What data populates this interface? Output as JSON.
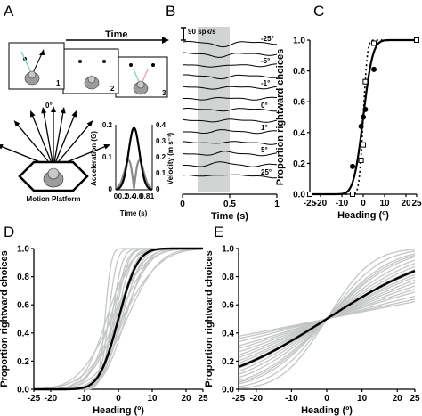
{
  "panel_a": {
    "label": "A",
    "time_label": "Time",
    "frame_numbers": [
      "1",
      "2",
      "3"
    ],
    "heading_zero": "0°",
    "platform_label": "Motion Platform",
    "inset": {
      "xlabel": "Time (s)",
      "ylabel_left": "Acceleration (G)",
      "ylabel_right": "Velocity (m s⁻¹)",
      "xticks": [
        "0",
        "0.2",
        "0.4",
        "0.6",
        "0.8",
        "1"
      ],
      "yticks_left": [
        "0",
        "0.1",
        "0.2"
      ],
      "yticks_right": [
        "0",
        "0.1",
        "0.2",
        "0.3",
        "0.4"
      ]
    }
  },
  "panel_b": {
    "label": "B",
    "scale_label": "90 spk/s",
    "headings": [
      "-25°",
      "-5°",
      "-1°",
      "0°",
      "1°",
      "5°",
      "25°"
    ],
    "xlabel": "Time (s)",
    "xticks": [
      "0",
      "0.5",
      "1"
    ]
  },
  "chart_data": [
    {
      "panel": "C",
      "type": "scatter",
      "xlabel": "Heading (º)",
      "ylabel": "Proportion rightward choices",
      "xlim": [
        -25,
        25
      ],
      "ylim": [
        0,
        1
      ],
      "xticks": [
        "-25",
        "-20",
        "-10",
        "0",
        "10",
        "20",
        "25"
      ],
      "yticks": [
        "0.0",
        "0.2",
        "0.4",
        "0.6",
        "0.8",
        "1.0"
      ],
      "series": [
        {
          "marker": "filled-circle",
          "x": [
            -25,
            -5,
            -1,
            0,
            1,
            5,
            25
          ],
          "y": [
            0.0,
            0.18,
            0.44,
            0.5,
            0.55,
            0.81,
            1.0
          ]
        },
        {
          "marker": "open-square",
          "x": [
            -25,
            -5,
            -1,
            0,
            1,
            5,
            25
          ],
          "y": [
            0.0,
            0.0,
            0.22,
            0.32,
            0.73,
            0.98,
            1.0
          ]
        }
      ],
      "fits": [
        {
          "style": "solid",
          "mu": 0,
          "sigma": 3.5
        },
        {
          "style": "dotted",
          "mu": 0,
          "sigma": 1.5
        }
      ]
    },
    {
      "panel": "D",
      "type": "line",
      "xlabel": "Heading (º)",
      "ylabel": "Proportion rightward choices",
      "xlim": [
        -25,
        25
      ],
      "ylim": [
        0,
        1
      ],
      "xticks": [
        "-25",
        "-20",
        "-10",
        "0",
        "10",
        "20",
        "25"
      ],
      "yticks": [
        "0.0",
        "0.2",
        "0.4",
        "0.6",
        "0.8",
        "1.0"
      ],
      "mean_fit": {
        "mu": 0,
        "sigma": 4.5
      },
      "individual_sigmas": [
        1.5,
        2,
        2.5,
        3,
        3,
        3.5,
        4,
        4,
        4.5,
        5,
        5,
        5.5,
        6,
        6.5,
        7,
        7.5,
        8,
        9
      ],
      "individual_mus": [
        -4,
        -3,
        -2,
        -1.5,
        -1,
        -0.5,
        0,
        0.5,
        1,
        -2.5,
        2,
        -3.5,
        1.5,
        -1,
        0,
        2.5,
        -2,
        1
      ]
    },
    {
      "panel": "E",
      "type": "line",
      "xlabel": "Heading (º)",
      "ylabel": "Proportion rightward choices",
      "xlim": [
        -25,
        25
      ],
      "ylim": [
        0,
        1
      ],
      "xticks": [
        "-25",
        "-20",
        "-10",
        "0",
        "10",
        "20",
        "25"
      ],
      "yticks": [
        "0.0",
        "0.2",
        "0.4",
        "0.6",
        "0.8",
        "1.0"
      ],
      "mean_fit": {
        "mu": 0,
        "sigma": 25
      },
      "individual_sigmas": [
        10,
        12,
        14,
        15,
        16,
        18,
        20,
        22,
        24,
        26,
        28,
        30,
        33,
        36,
        40,
        45,
        50,
        60,
        70,
        80
      ]
    }
  ],
  "colors": {
    "grey": "#c4c6c6",
    "black": "#000000",
    "shade": "#d2d4d4",
    "teal": "#8fd3c6"
  }
}
